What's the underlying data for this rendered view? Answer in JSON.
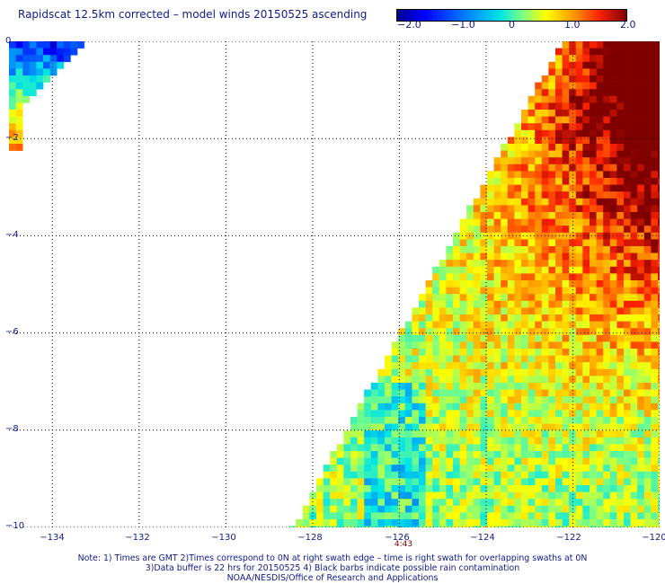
{
  "title": "Rapidscat 12.5km corrected – model winds 20150525 ascending",
  "colorbar": {
    "tick_labels": [
      "−2.0",
      "−1.0",
      "0",
      "1.0",
      "2.0"
    ],
    "min": -2.0,
    "max": 2.0,
    "colors": [
      "#00008f",
      "#0000ff",
      "#0080ff",
      "#00e5e5",
      "#80ff80",
      "#ffff00",
      "#ff9900",
      "#ff2200",
      "#800000"
    ]
  },
  "map": {
    "lat_labels": [
      "0",
      "−2",
      "−4",
      "−6",
      "−8",
      "−10"
    ],
    "lon_labels": [
      "−134",
      "−132",
      "−130",
      "−128",
      "−126",
      "−124",
      "−122",
      "−120"
    ],
    "lat_range": [
      -10,
      0
    ],
    "lon_range": [
      -135,
      -120
    ],
    "gridlines": true,
    "time_label": "4:43",
    "time_label_lon": -126
  },
  "notes": {
    "line1": "Note: 1) Times are GMT 2)Times correspond to 0N at right swath edge – time is right swath for overlapping swaths at 0N",
    "line2": "3)Data buffer is 22 hrs for 20150525 4) Black barbs indicate possible rain contamination",
    "line3": "NOAA/NESDIS/Office of Research and Applications"
  }
}
